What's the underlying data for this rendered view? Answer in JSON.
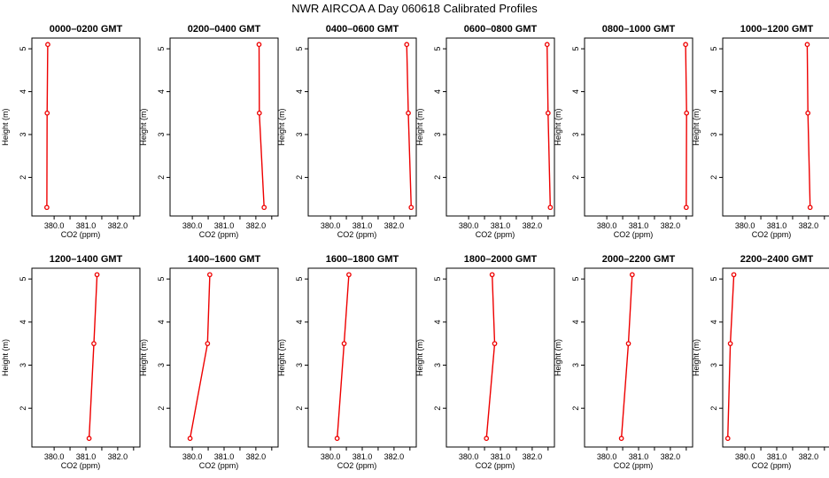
{
  "title": "NWR AIRCOA A  Day 060618  Calibrated Profiles",
  "colors": {
    "profile": "#ee0000",
    "axis": "#000000"
  },
  "chart_data": {
    "type": "line",
    "xlabel": "CO2 (ppm)",
    "ylabel": "Height (m)",
    "xlim": [
      379.3,
      382.7
    ],
    "ylim": [
      1.1,
      5.25
    ],
    "x_ticks": [
      380.0,
      380.5,
      381.0,
      381.5,
      382.0,
      382.5
    ],
    "x_tick_labels": [
      "380.0",
      "",
      "381.0",
      "",
      "382.0",
      ""
    ],
    "y_ticks": [
      2,
      3,
      4,
      5
    ],
    "y_tick_labels": [
      "2",
      "3",
      "4",
      "5"
    ],
    "heights": [
      1.3,
      3.5,
      5.1
    ],
    "panels": [
      {
        "title": "0000–0200 GMT",
        "co2": [
          379.77,
          379.78,
          379.8
        ]
      },
      {
        "title": "0200–0400 GMT",
        "co2": [
          382.26,
          382.11,
          382.1
        ]
      },
      {
        "title": "0400–0600 GMT",
        "co2": [
          382.54,
          382.45,
          382.4
        ]
      },
      {
        "title": "0600–0800 GMT",
        "co2": [
          382.57,
          382.5,
          382.47
        ]
      },
      {
        "title": "0800–1000 GMT",
        "co2": [
          382.5,
          382.51,
          382.48
        ]
      },
      {
        "title": "1000–1200 GMT",
        "co2": [
          382.05,
          381.98,
          381.96
        ]
      },
      {
        "title": "1200–1400 GMT",
        "co2": [
          381.1,
          381.25,
          381.35
        ]
      },
      {
        "title": "1400–1600 GMT",
        "co2": [
          379.93,
          380.48,
          380.55
        ]
      },
      {
        "title": "1600–1800 GMT",
        "co2": [
          380.21,
          380.43,
          380.58
        ]
      },
      {
        "title": "1800–2000 GMT",
        "co2": [
          380.56,
          380.82,
          380.74
        ]
      },
      {
        "title": "2000–2200 GMT",
        "co2": [
          380.46,
          380.68,
          380.8
        ]
      },
      {
        "title": "2200–2400 GMT",
        "co2": [
          379.46,
          379.54,
          379.65
        ]
      }
    ]
  }
}
